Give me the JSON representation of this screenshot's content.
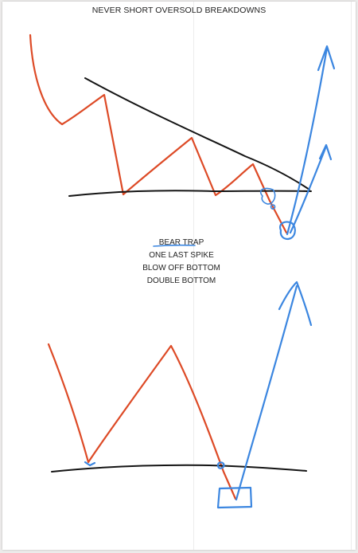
{
  "title": "NEVER SHORT OVERSOLD BREAKDOWNS",
  "labels": {
    "bear_trap": "BEAR TRAP",
    "one_last_spike": "ONE LAST SPIKE",
    "blow_off_bottom": "BLOW OFF BOTTOM",
    "double_bottom": "DOUBLE BOTTOM"
  },
  "colors": {
    "price_line": "#dd4a26",
    "trend_line": "#141414",
    "annotation": "#3b86e0",
    "background": "#ffffff"
  }
}
